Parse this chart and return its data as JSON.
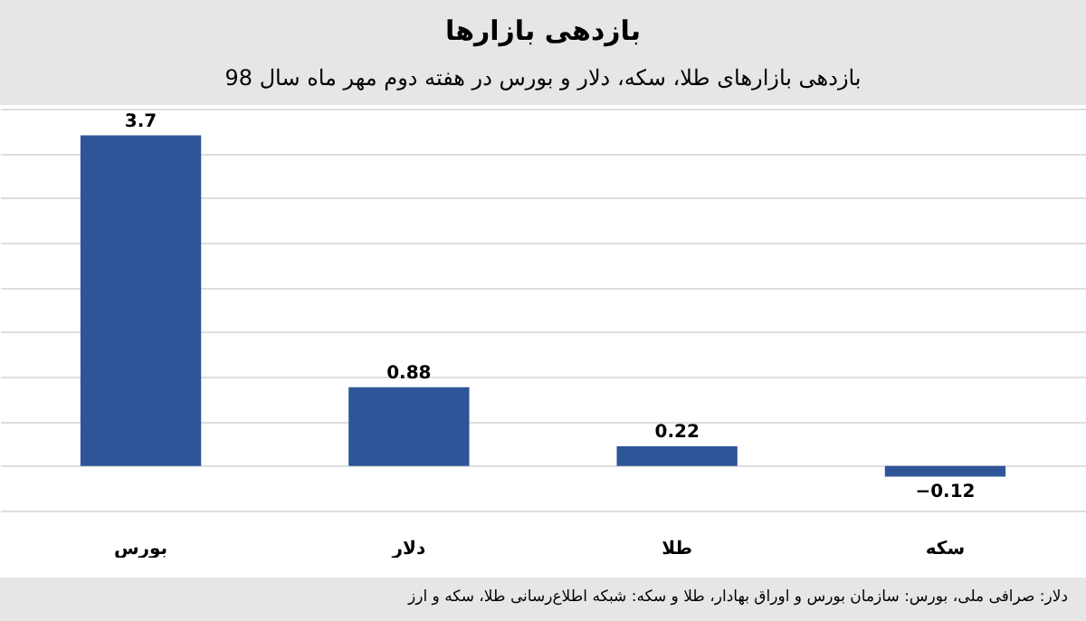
{
  "chart_data": {
    "type": "bar",
    "title": "بازدهی بازارها",
    "subtitle": "بازدهی بازارهای طلا، سکه، دلار و بورس در هفته دوم مهر ماه سال 98",
    "categories": [
      "بورس",
      "دلار",
      "طلا",
      "سکه"
    ],
    "values": [
      3.7,
      0.88,
      0.22,
      -0.12
    ],
    "color": "#2e5597",
    "data_labels": true,
    "tick_labels": "x",
    "grid": "y",
    "annotations": [
      "دلار: صرافی ملی، بورس: سازمان بورس و اوراق بهادار، طلا و سکه: شبکه اطلاع‌رسانی طلا، سکه و ارز"
    ]
  }
}
